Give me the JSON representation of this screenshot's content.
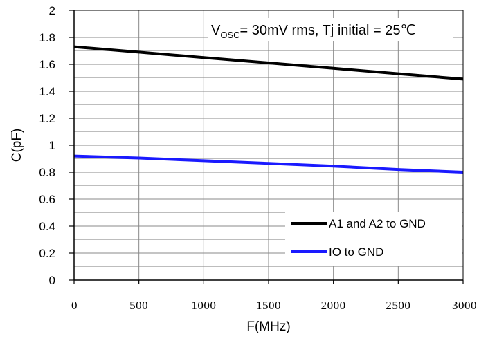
{
  "chart_data": {
    "type": "line",
    "title": "",
    "xlabel": "F(MHz)",
    "ylabel": "C(pF)",
    "xlim": [
      0,
      3000
    ],
    "ylim": [
      0,
      2
    ],
    "x_ticks": [
      "0",
      "500",
      "1000",
      "1500",
      "2000",
      "2500",
      "3000"
    ],
    "y_ticks": [
      "0",
      "0.2",
      "0.4",
      "0.6",
      "0.8",
      "1",
      "1.2",
      "1.4",
      "1.6",
      "1.8",
      "2"
    ],
    "grid": true,
    "legend_position": "bottom-right",
    "annotation": {
      "v": "V",
      "sub": "OSC",
      "rest": "= 30mV rms, Tj initial = 25℃"
    },
    "series": [
      {
        "name": "A1 and A2 to GND",
        "color": "#000000",
        "x": [
          0,
          500,
          1000,
          1500,
          2000,
          2500,
          3000
        ],
        "y": [
          1.73,
          1.69,
          1.65,
          1.61,
          1.57,
          1.53,
          1.49
        ]
      },
      {
        "name": "IO to GND",
        "color": "#1a1aff",
        "x": [
          0,
          500,
          1000,
          1500,
          2000,
          2500,
          3000
        ],
        "y": [
          0.92,
          0.905,
          0.885,
          0.865,
          0.845,
          0.82,
          0.8
        ]
      }
    ]
  }
}
